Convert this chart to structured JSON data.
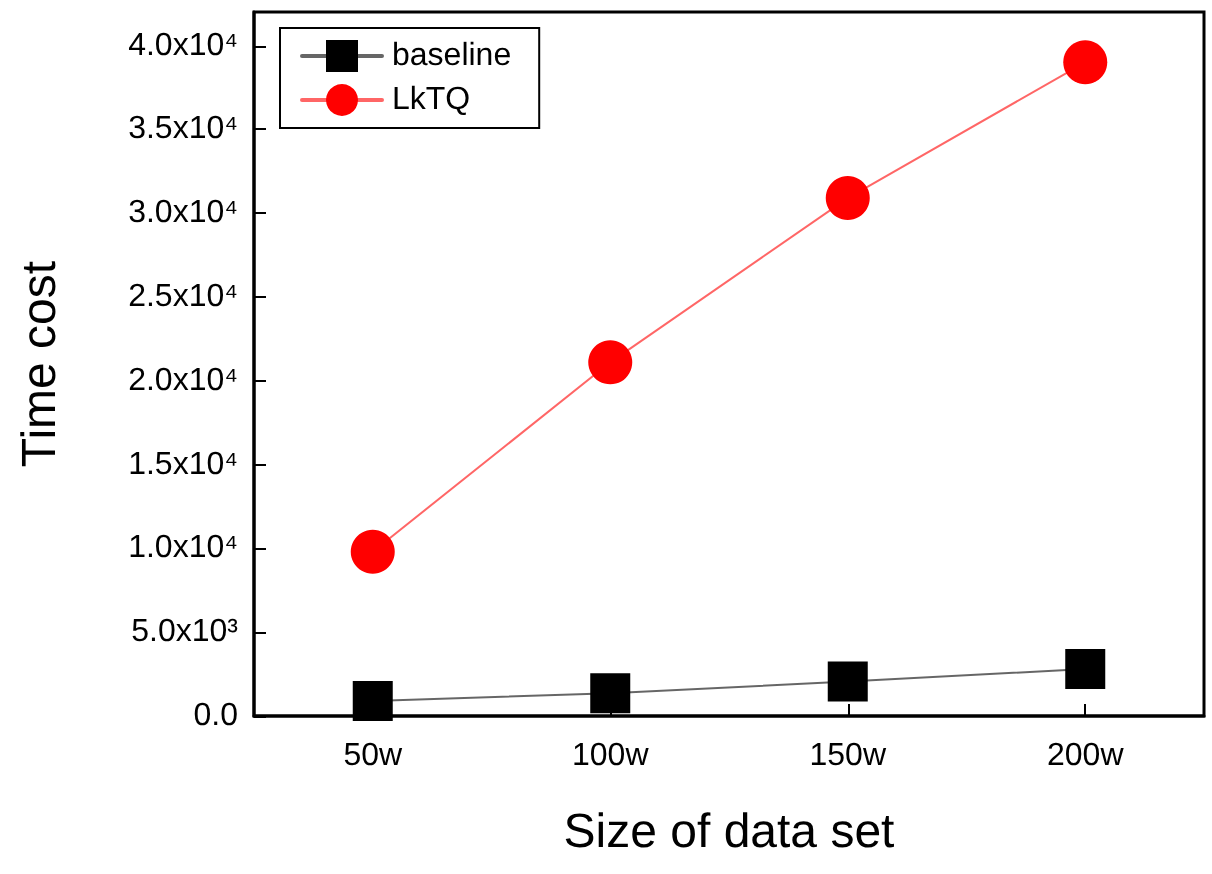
{
  "chart_data": {
    "type": "line",
    "xlabel": "Size of data set",
    "ylabel": "Time cost",
    "categories": [
      "50w",
      "100w",
      "150w",
      "200w"
    ],
    "series": [
      {
        "name": "baseline",
        "color": "#000000",
        "marker": "square",
        "values": [
          900,
          1350,
          2060,
          2800
        ]
      },
      {
        "name": "LkTQ",
        "color": "#ff0000",
        "marker": "circle",
        "values": [
          9800,
          21100,
          30900,
          39000
        ]
      }
    ],
    "ylim": [
      0,
      42000
    ],
    "yticks": [
      {
        "value": 0,
        "label": "0.0"
      },
      {
        "value": 5000,
        "label": "5.0x10³"
      },
      {
        "value": 10000,
        "label": "1.0x10⁴"
      },
      {
        "value": 15000,
        "label": "1.5x10⁴"
      },
      {
        "value": 20000,
        "label": "2.0x10⁴"
      },
      {
        "value": 25000,
        "label": "2.5x10⁴"
      },
      {
        "value": 30000,
        "label": "3.0x10⁴"
      },
      {
        "value": 35000,
        "label": "3.5x10⁴"
      },
      {
        "value": 40000,
        "label": "4.0x10⁴"
      }
    ],
    "grid": false,
    "legend": "top left",
    "line_style": "solid"
  }
}
